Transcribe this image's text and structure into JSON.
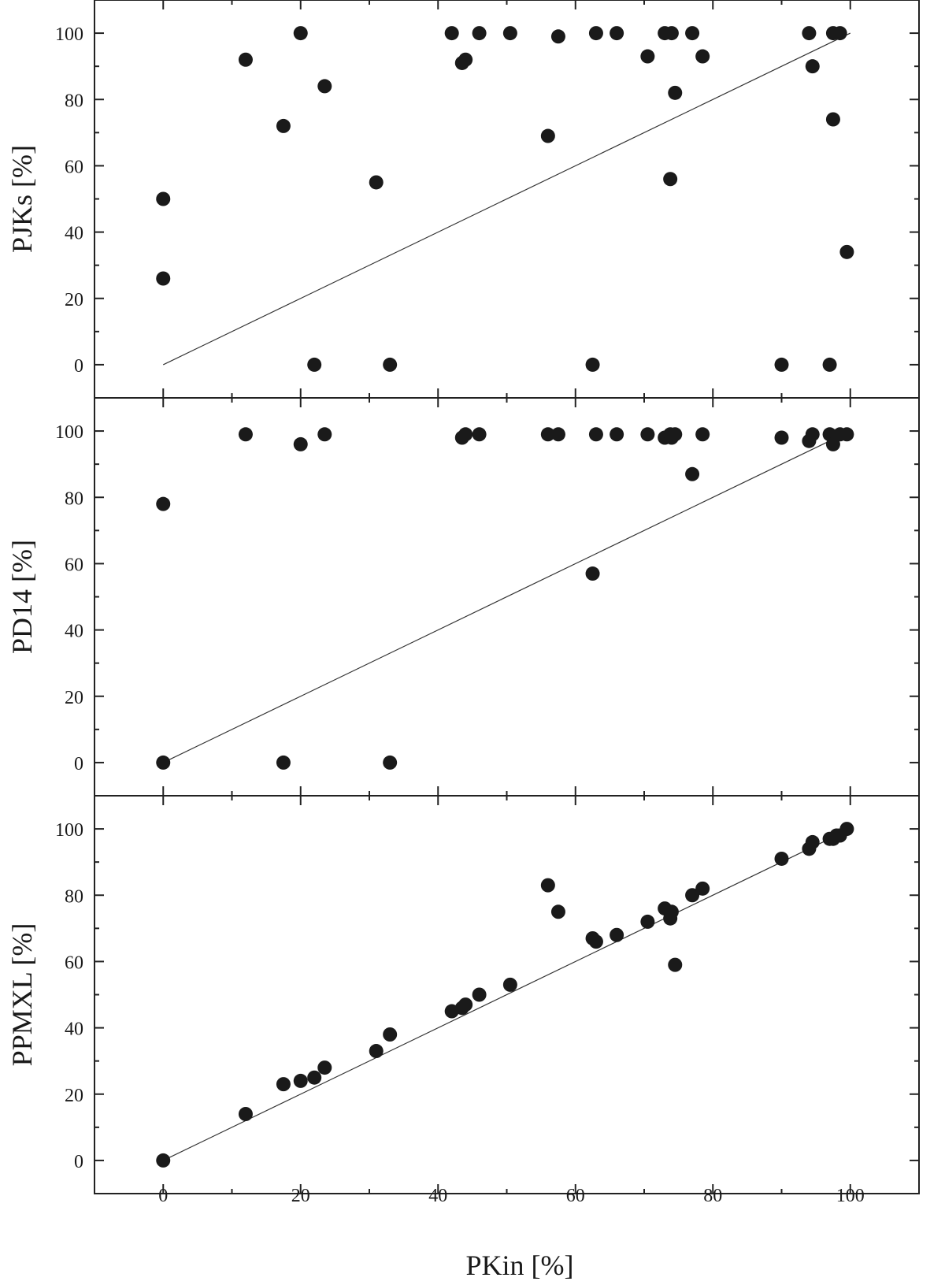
{
  "chart_data": {
    "type": "scatter",
    "layout": "3 vertically stacked panels sharing x-axis",
    "xlabel": "PKin [%]",
    "xlim": [
      -10,
      110
    ],
    "xticks": [
      0,
      20,
      40,
      60,
      80,
      100
    ],
    "yticks": [
      0,
      20,
      40,
      60,
      80,
      100
    ],
    "ylim": [
      -10,
      110
    ],
    "reference_line": "y = x",
    "colors": {
      "points": "#1a1a1a",
      "line": "#333333",
      "frame": "#222222"
    },
    "panels": [
      {
        "ylabel": "PJKs [%]",
        "points": [
          [
            0,
            50
          ],
          [
            0,
            26
          ],
          [
            12,
            92
          ],
          [
            17.5,
            72
          ],
          [
            20,
            100
          ],
          [
            22,
            0
          ],
          [
            23.5,
            84
          ],
          [
            31,
            55
          ],
          [
            33,
            0
          ],
          [
            42,
            100
          ],
          [
            43.5,
            91
          ],
          [
            44,
            92
          ],
          [
            46,
            100
          ],
          [
            50.5,
            100
          ],
          [
            56,
            69
          ],
          [
            57.5,
            99
          ],
          [
            62.5,
            0
          ],
          [
            63,
            100
          ],
          [
            66,
            100
          ],
          [
            70.5,
            93
          ],
          [
            73,
            100
          ],
          [
            73.8,
            56
          ],
          [
            74,
            100
          ],
          [
            74.5,
            82
          ],
          [
            77,
            100
          ],
          [
            78.5,
            93
          ],
          [
            90,
            0
          ],
          [
            94,
            100
          ],
          [
            94.5,
            90
          ],
          [
            97,
            0
          ],
          [
            97.5,
            74
          ],
          [
            97.5,
            100
          ],
          [
            98.5,
            100
          ],
          [
            99.5,
            34
          ]
        ]
      },
      {
        "ylabel": "PD14 [%]",
        "points": [
          [
            0,
            78
          ],
          [
            0,
            0
          ],
          [
            12,
            99
          ],
          [
            17.5,
            0
          ],
          [
            20,
            96
          ],
          [
            23.5,
            99
          ],
          [
            33,
            0
          ],
          [
            43.5,
            98
          ],
          [
            44,
            99
          ],
          [
            46,
            99
          ],
          [
            56,
            99
          ],
          [
            57.5,
            99
          ],
          [
            62.5,
            57
          ],
          [
            63,
            99
          ],
          [
            66,
            99
          ],
          [
            70.5,
            99
          ],
          [
            73,
            98
          ],
          [
            73.8,
            99
          ],
          [
            74,
            98
          ],
          [
            74.5,
            99
          ],
          [
            77,
            87
          ],
          [
            78.5,
            99
          ],
          [
            90,
            98
          ],
          [
            94,
            97
          ],
          [
            94.5,
            99
          ],
          [
            97,
            99
          ],
          [
            97.5,
            96
          ],
          [
            98.5,
            99
          ],
          [
            99.5,
            99
          ]
        ]
      },
      {
        "ylabel": "PPMXL [%]",
        "points": [
          [
            0,
            0
          ],
          [
            12,
            14
          ],
          [
            17.5,
            23
          ],
          [
            20,
            24
          ],
          [
            22,
            25
          ],
          [
            23.5,
            28
          ],
          [
            31,
            33
          ],
          [
            33,
            38
          ],
          [
            42,
            45
          ],
          [
            43.5,
            46
          ],
          [
            44,
            47
          ],
          [
            46,
            50
          ],
          [
            50.5,
            53
          ],
          [
            56,
            83
          ],
          [
            57.5,
            75
          ],
          [
            62.5,
            67
          ],
          [
            63,
            66
          ],
          [
            66,
            68
          ],
          [
            70.5,
            72
          ],
          [
            73,
            76
          ],
          [
            73.8,
            73
          ],
          [
            74,
            75
          ],
          [
            74.5,
            59
          ],
          [
            77,
            80
          ],
          [
            78.5,
            82
          ],
          [
            90,
            91
          ],
          [
            94,
            94
          ],
          [
            94.5,
            96
          ],
          [
            97,
            97
          ],
          [
            97.5,
            97
          ],
          [
            98,
            98
          ],
          [
            98.5,
            98
          ],
          [
            99.5,
            100
          ]
        ]
      }
    ]
  }
}
